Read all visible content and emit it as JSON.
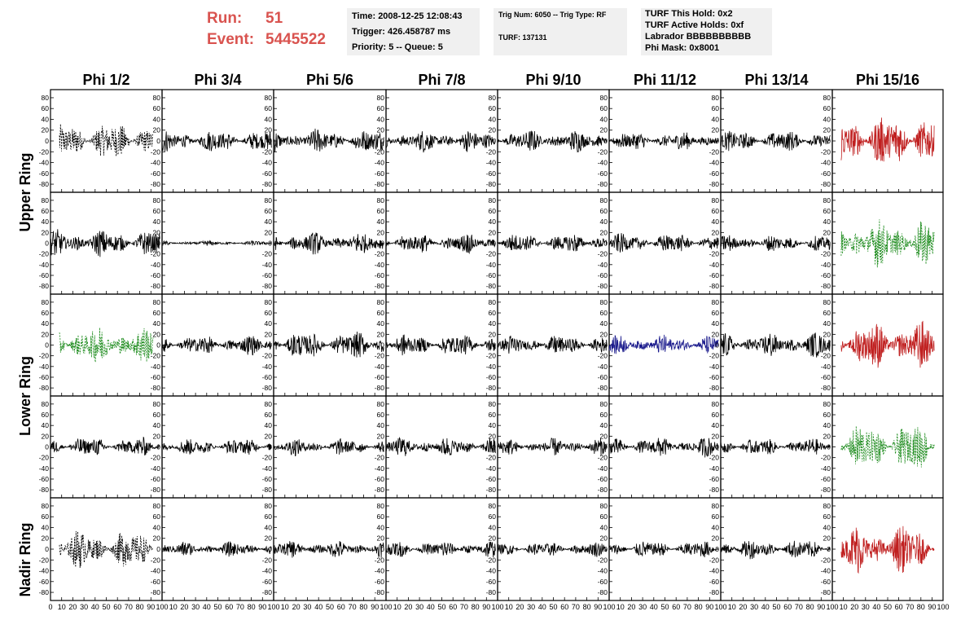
{
  "header": {
    "run_label": "Run:",
    "run_value": "51",
    "event_label": "Event:",
    "event_value": "5445522",
    "time": "Time: 2008-12-25 12:08:43",
    "trigger": "Trigger: 426.458787 ms",
    "priority": "Priority: 5 -- Queue: 5",
    "trig_num": "Trig Num: 6050 -- Trig Type: RF",
    "turf": "TURF: 137131",
    "turf_this_hold": "TURF This Hold: 0x2",
    "turf_active_holds": "TURF Active Holds: 0xf",
    "labrador": "Labrador BBBBBBBBBB",
    "phi_mask": "Phi Mask: 0x8001"
  },
  "columns": [
    "Phi 1/2",
    "Phi 3/4",
    "Phi 5/6",
    "Phi 7/8",
    "Phi 9/10",
    "Phi 11/12",
    "Phi 13/14",
    "Phi 15/16"
  ],
  "ring_labels": [
    "Upper Ring",
    "Lower Ring",
    "Nadir Ring"
  ],
  "colors": {
    "header_red": "#d9534f",
    "trace_black": "#000000",
    "trace_red": "#c02020",
    "trace_green": "#1e8c1e",
    "trace_blue": "#1a1a8c"
  },
  "chart_data": {
    "type": "line",
    "xlim": [
      0,
      100
    ],
    "ylim": [
      -95,
      95
    ],
    "x_ticks": [
      "10",
      "20",
      "30",
      "40",
      "50",
      "60",
      "70",
      "80",
      "90",
      "100"
    ],
    "x_ticks_first": "0",
    "y_ticks": [
      "80",
      "60",
      "40",
      "20",
      "0",
      "-20",
      "-40",
      "-60",
      "-80"
    ],
    "grid": false,
    "traces": [
      [
        "black-dashed",
        "black",
        "black",
        "black",
        "black",
        "black",
        "black",
        "red"
      ],
      [
        "black",
        "black",
        "black",
        "black",
        "black",
        "black",
        "black",
        "green-dashed"
      ],
      [
        "green-dashed",
        "black",
        "black",
        "black",
        "black",
        "blue",
        "black",
        "red"
      ],
      [
        "black",
        "black",
        "black",
        "black",
        "black",
        "black",
        "black",
        "green-dashed"
      ],
      [
        "black-dashed",
        "black",
        "black",
        "black",
        "black",
        "black",
        "black",
        "red"
      ]
    ],
    "amplitudes": [
      [
        30,
        18,
        20,
        18,
        18,
        15,
        17,
        42
      ],
      [
        22,
        4,
        18,
        16,
        16,
        16,
        14,
        38
      ],
      [
        30,
        16,
        22,
        18,
        16,
        16,
        20,
        38
      ],
      [
        16,
        14,
        14,
        16,
        14,
        16,
        14,
        38
      ],
      [
        30,
        12,
        14,
        14,
        12,
        14,
        16,
        38
      ]
    ]
  }
}
